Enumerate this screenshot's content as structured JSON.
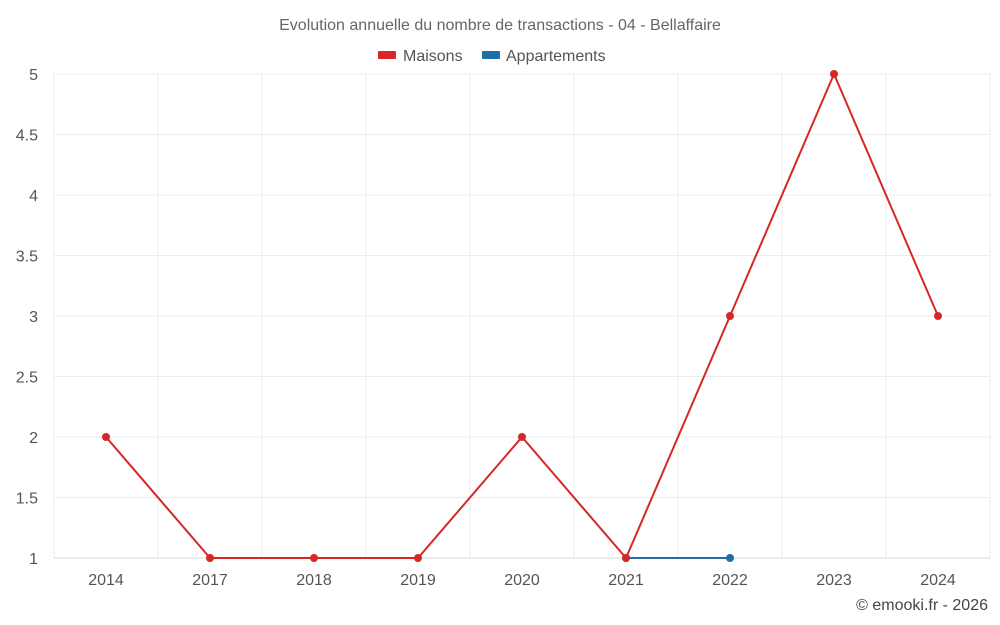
{
  "chart_data": {
    "type": "line",
    "title": "Evolution annuelle du nombre de transactions - 04 - Bellaffaire",
    "categories": [
      "2014",
      "2017",
      "2018",
      "2019",
      "2020",
      "2021",
      "2022",
      "2023",
      "2024"
    ],
    "ylim": [
      1,
      5
    ],
    "yticks": [
      "1",
      "1.5",
      "2",
      "2.5",
      "3",
      "3.5",
      "4",
      "4.5",
      "5"
    ],
    "grid": true,
    "legend_position": "top-center",
    "series": [
      {
        "name": "Maisons",
        "color": "#d62728",
        "values": [
          2,
          1,
          1,
          1,
          2,
          1,
          3,
          5,
          3
        ]
      },
      {
        "name": "Appartements",
        "color": "#1f6ea8",
        "values": [
          null,
          null,
          null,
          null,
          null,
          1,
          1,
          null,
          null
        ]
      }
    ],
    "credit": "© emooki.fr - 2026"
  }
}
